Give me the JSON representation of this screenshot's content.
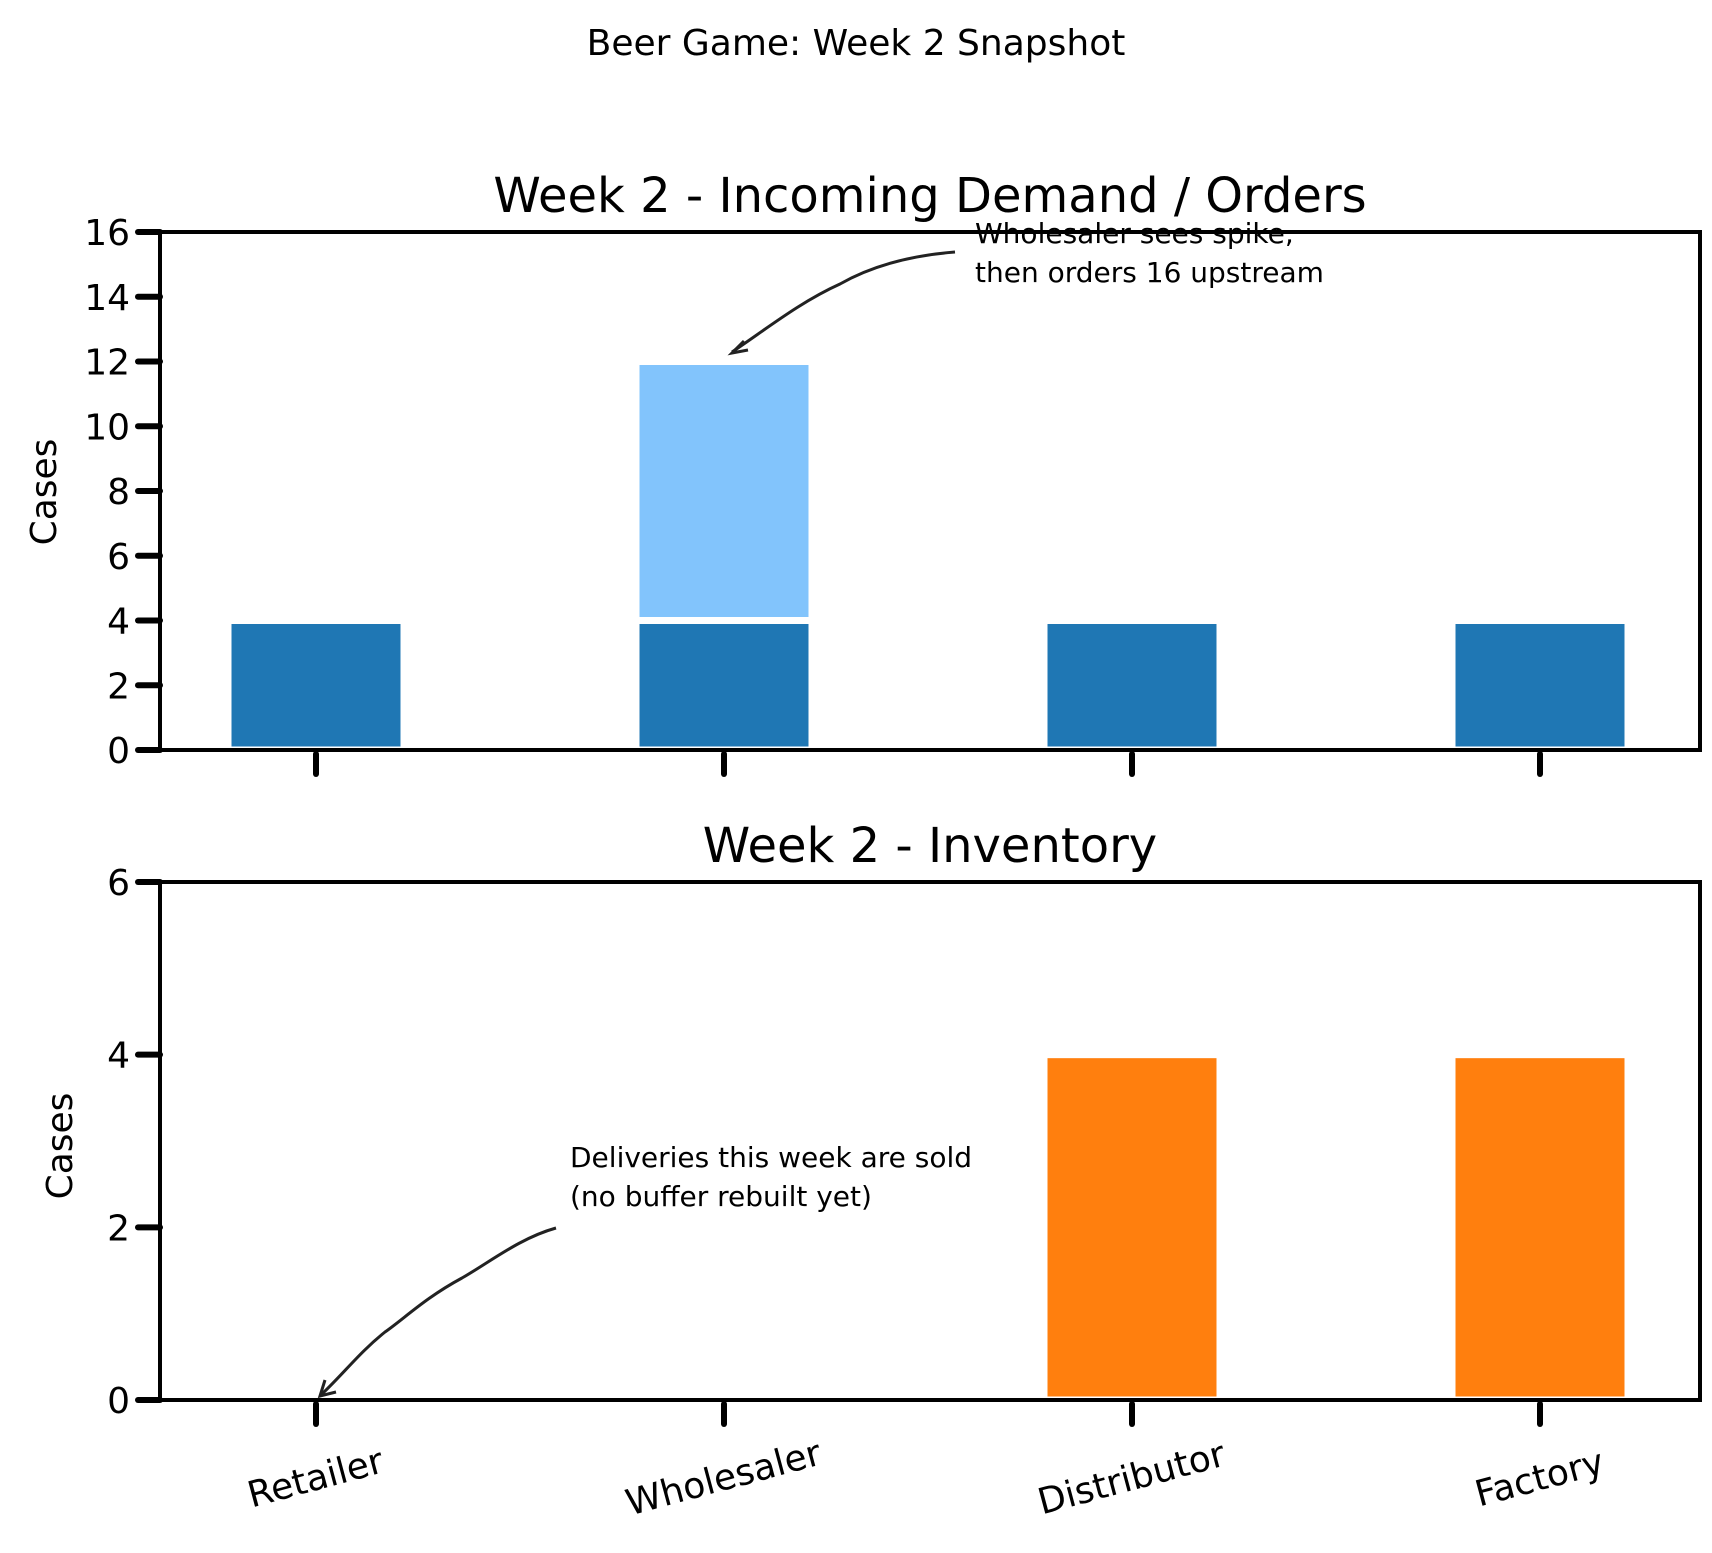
{
  "suptitle": "Beer Game: Week 2 Snapshot",
  "colors": {
    "base": "#1f77b4",
    "spike": "#82c4fc",
    "inventory": "#ff7f0e"
  },
  "chart_data": [
    {
      "type": "bar",
      "stacked": true,
      "title": "Week 2 - Incoming Demand / Orders",
      "ylabel": "Cases",
      "xlabel": "",
      "ylim": [
        0,
        16
      ],
      "yticks": [
        0,
        2,
        4,
        6,
        8,
        10,
        12,
        14,
        16
      ],
      "categories": [
        "Retailer",
        "Wholesaler",
        "Distributor",
        "Factory"
      ],
      "show_xtick_labels": false,
      "series": [
        {
          "values": [
            4,
            4,
            4,
            4
          ],
          "color": "#1f77b4"
        },
        {
          "values": [
            0,
            8,
            0,
            0
          ],
          "color": "#82c4fc"
        }
      ],
      "annotations": [
        {
          "text_lines": [
            "Wholesaler sees spike,",
            "then orders 16 upstream"
          ],
          "target": {
            "category": "Wholesaler",
            "y": 12
          }
        }
      ]
    },
    {
      "type": "bar",
      "title": "Week 2 - Inventory",
      "ylabel": "Cases",
      "xlabel": "",
      "ylim": [
        0,
        6
      ],
      "yticks": [
        0,
        2,
        4,
        6
      ],
      "categories": [
        "Retailer",
        "Wholesaler",
        "Distributor",
        "Factory"
      ],
      "show_xtick_labels": true,
      "series": [
        {
          "values": [
            0,
            0,
            4,
            4
          ],
          "color": "#ff7f0e"
        }
      ],
      "annotations": [
        {
          "text_lines": [
            "Deliveries this week are sold",
            "(no buffer rebuilt yet)"
          ],
          "target": {
            "category": "Retailer",
            "y": 0
          }
        }
      ]
    }
  ]
}
